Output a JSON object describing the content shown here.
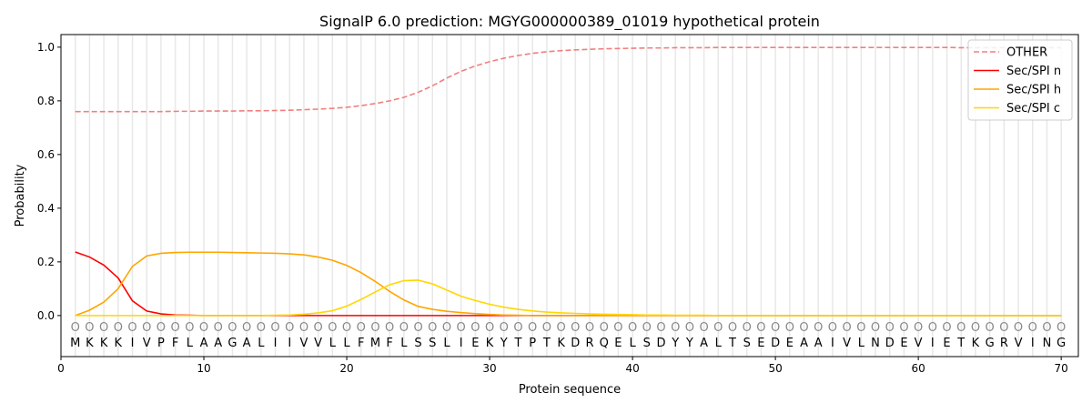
{
  "chart_data": {
    "type": "line",
    "title": "SignalP 6.0 prediction: MGYG000000389_01019 hypothetical protein",
    "xlabel": "Protein sequence",
    "ylabel": "Probability",
    "xlim": [
      0,
      71.2
    ],
    "ylim": [
      -0.153,
      1.047
    ],
    "xticks": [
      0,
      10,
      20,
      30,
      40,
      50,
      60,
      70
    ],
    "yticks": [
      0.0,
      0.2,
      0.4,
      0.6,
      0.8,
      1.0
    ],
    "ytick_labels": [
      "0.0",
      "0.2",
      "0.4",
      "0.6",
      "0.8",
      "1.0"
    ],
    "legend_position": "top-right",
    "sequence": [
      "M",
      "K",
      "K",
      "K",
      "I",
      "V",
      "P",
      "F",
      "L",
      "A",
      "A",
      "G",
      "A",
      "L",
      "I",
      "I",
      "V",
      "V",
      "L",
      "L",
      "F",
      "M",
      "F",
      "L",
      "S",
      "S",
      "L",
      "I",
      "E",
      "K",
      "Y",
      "T",
      "P",
      "T",
      "K",
      "D",
      "R",
      "Q",
      "E",
      "L",
      "S",
      "D",
      "Y",
      "Y",
      "A",
      "L",
      "T",
      "S",
      "E",
      "D",
      "E",
      "A",
      "A",
      "I",
      "V",
      "L",
      "N",
      "D",
      "E",
      "V",
      "I",
      "E",
      "T",
      "K",
      "G",
      "R",
      "V",
      "I",
      "N",
      "G"
    ],
    "position_marker": "O",
    "series": [
      {
        "name": "OTHER",
        "color": "#f08080",
        "dashed": true,
        "values": [
          0.76,
          0.76,
          0.76,
          0.76,
          0.76,
          0.76,
          0.76,
          0.761,
          0.761,
          0.762,
          0.762,
          0.762,
          0.763,
          0.763,
          0.764,
          0.765,
          0.767,
          0.769,
          0.772,
          0.776,
          0.782,
          0.79,
          0.8,
          0.813,
          0.832,
          0.856,
          0.885,
          0.91,
          0.93,
          0.946,
          0.959,
          0.969,
          0.977,
          0.983,
          0.987,
          0.99,
          0.992,
          0.994,
          0.995,
          0.996,
          0.997,
          0.997,
          0.998,
          0.998,
          0.998,
          0.999,
          0.999,
          0.999,
          0.999,
          0.999,
          0.999,
          0.999,
          0.999,
          0.999,
          0.999,
          0.999,
          0.999,
          0.999,
          0.999,
          0.999,
          0.999,
          0.999,
          0.998,
          0.998,
          0.998,
          0.998,
          0.998,
          0.998,
          0.998,
          0.998
        ]
      },
      {
        "name": "Sec/SPI n",
        "color": "#ff0000",
        "dashed": false,
        "values": [
          0.237,
          0.218,
          0.188,
          0.14,
          0.055,
          0.017,
          0.006,
          0.002,
          0.001,
          0,
          0,
          0,
          0,
          0,
          0,
          0,
          0,
          0,
          0,
          0,
          0,
          0,
          0,
          0,
          0,
          0,
          0,
          0,
          0,
          0,
          0,
          0,
          0,
          0,
          0,
          0,
          0,
          0,
          0,
          0,
          0,
          0,
          0,
          0,
          0,
          0,
          0,
          0,
          0,
          0,
          0,
          0,
          0,
          0,
          0,
          0,
          0,
          0,
          0,
          0,
          0,
          0,
          0,
          0,
          0,
          0,
          0,
          0,
          0,
          0
        ]
      },
      {
        "name": "Sec/SPI h",
        "color": "#ffa500",
        "dashed": false,
        "values": [
          0,
          0.02,
          0.05,
          0.1,
          0.183,
          0.222,
          0.232,
          0.235,
          0.236,
          0.236,
          0.236,
          0.235,
          0.234,
          0.233,
          0.232,
          0.23,
          0.226,
          0.218,
          0.206,
          0.187,
          0.16,
          0.127,
          0.09,
          0.058,
          0.034,
          0.023,
          0.016,
          0.011,
          0.007,
          0.004,
          0.002,
          0.001,
          0,
          0,
          0,
          0,
          0,
          0,
          0,
          0,
          0,
          0,
          0,
          0,
          0,
          0,
          0,
          0,
          0,
          0,
          0,
          0,
          0,
          0,
          0,
          0,
          0,
          0,
          0,
          0,
          0,
          0,
          0,
          0,
          0,
          0,
          0,
          0,
          0,
          0
        ]
      },
      {
        "name": "Sec/SPI c",
        "color": "#ffd700",
        "dashed": false,
        "values": [
          0,
          0,
          0,
          0,
          0,
          0,
          0,
          0,
          0,
          0,
          0,
          0,
          0,
          0,
          0.001,
          0.002,
          0.005,
          0.01,
          0.018,
          0.035,
          0.06,
          0.088,
          0.115,
          0.13,
          0.132,
          0.118,
          0.095,
          0.072,
          0.056,
          0.042,
          0.031,
          0.023,
          0.017,
          0.013,
          0.01,
          0.008,
          0.006,
          0.005,
          0.004,
          0.003,
          0.002,
          0.002,
          0.001,
          0.001,
          0.001,
          0,
          0,
          0,
          0,
          0,
          0,
          0,
          0,
          0,
          0,
          0,
          0,
          0,
          0,
          0,
          0,
          0,
          0,
          0,
          0,
          0,
          0,
          0,
          0,
          0
        ]
      }
    ]
  }
}
